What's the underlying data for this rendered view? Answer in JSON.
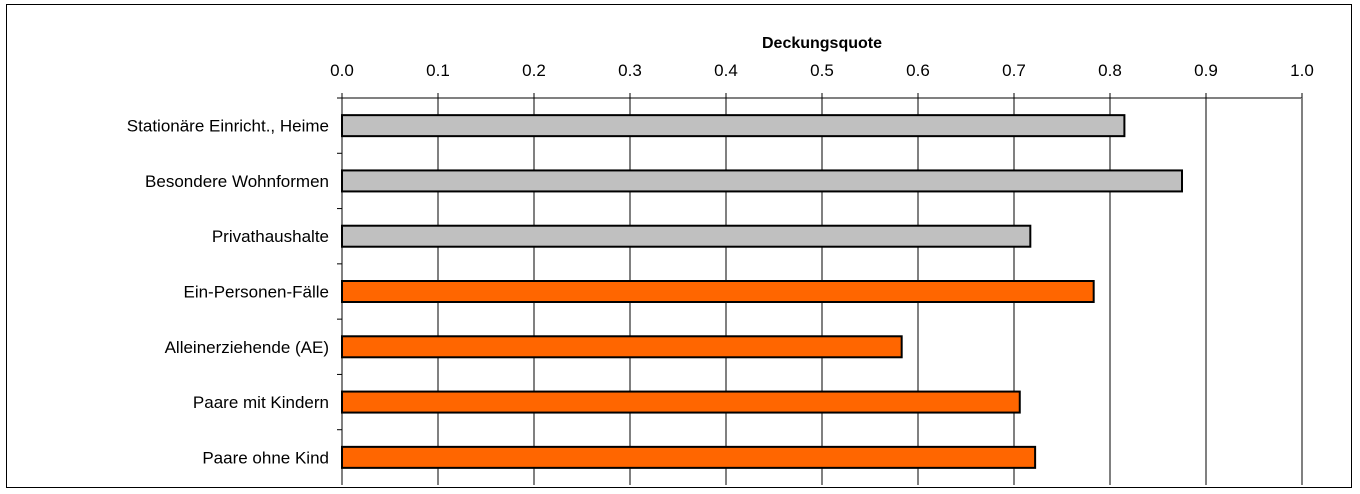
{
  "chart_data": {
    "type": "bar",
    "orientation": "horizontal",
    "title": "",
    "xlabel": "Deckungsquote",
    "ylabel": "",
    "xlim": [
      0,
      1.0
    ],
    "x_ticks": [
      "0.0",
      "0.1",
      "0.2",
      "0.3",
      "0.4",
      "0.5",
      "0.6",
      "0.7",
      "0.8",
      "0.9",
      "1.0"
    ],
    "x_tick_values": [
      0,
      0.1,
      0.2,
      0.3,
      0.4,
      0.5,
      0.6,
      0.7,
      0.8,
      0.9,
      1.0
    ],
    "x_axis_position": "top",
    "grid": "vertical",
    "legend": "none",
    "categories": [
      "Stationäre Einricht., Heime",
      "Besondere Wohnformen",
      "Privathaushalte",
      "Ein-Personen-Fälle",
      "Alleinerziehende (AE)",
      "Paare mit Kindern",
      "Paare ohne Kind"
    ],
    "values": [
      0.815,
      0.875,
      0.717,
      0.783,
      0.583,
      0.706,
      0.722
    ],
    "bar_colors": [
      "#c0c0c0",
      "#c0c0c0",
      "#c0c0c0",
      "#ff6600",
      "#ff6600",
      "#ff6600",
      "#ff6600"
    ]
  }
}
